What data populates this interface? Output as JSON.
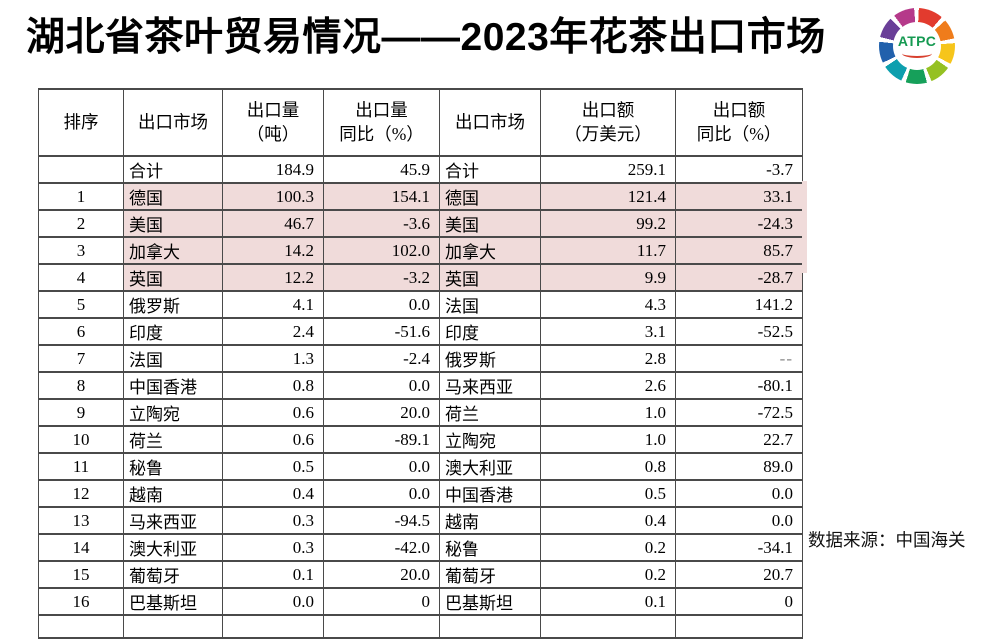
{
  "title": "湖北省茶叶贸易情况——2023年花茶出口市场",
  "logo": {
    "text": "ATPC"
  },
  "source_note": "数据来源：中国海关",
  "colors": {
    "highlight_pink": "#f0dbda",
    "table_border": "#4a4a4a",
    "logo_green": "#169a52"
  },
  "table": {
    "headers": [
      {
        "l1": "排序",
        "l2": ""
      },
      {
        "l1": "出口市场",
        "l2": ""
      },
      {
        "l1": "出口量",
        "l2": "（吨）"
      },
      {
        "l1": "出口量",
        "l2": "同比（%）"
      },
      {
        "l1": "出口市场",
        "l2": ""
      },
      {
        "l1": "出口额",
        "l2": "（万美元）"
      },
      {
        "l1": "出口额",
        "l2": "同比（%）"
      }
    ],
    "rows": [
      {
        "rank": "",
        "m1": "合计",
        "v1": "184.9",
        "y1": "45.9",
        "m2": "合计",
        "v2": "259.1",
        "y2": "-3.7",
        "hl": false
      },
      {
        "rank": "1",
        "m1": "德国",
        "v1": "100.3",
        "y1": "154.1",
        "m2": "德国",
        "v2": "121.4",
        "y2": "33.1",
        "hl": true
      },
      {
        "rank": "2",
        "m1": "美国",
        "v1": "46.7",
        "y1": "-3.6",
        "m2": "美国",
        "v2": "99.2",
        "y2": "-24.3",
        "hl": true
      },
      {
        "rank": "3",
        "m1": "加拿大",
        "v1": "14.2",
        "y1": "102.0",
        "m2": "加拿大",
        "v2": "11.7",
        "y2": "85.7",
        "hl": true
      },
      {
        "rank": "4",
        "m1": "英国",
        "v1": "12.2",
        "y1": "-3.2",
        "m2": "英国",
        "v2": "9.9",
        "y2": "-28.7",
        "hl": true
      },
      {
        "rank": "5",
        "m1": "俄罗斯",
        "v1": "4.1",
        "y1": "0.0",
        "m2": "法国",
        "v2": "4.3",
        "y2": "141.2",
        "hl": false
      },
      {
        "rank": "6",
        "m1": "印度",
        "v1": "2.4",
        "y1": "-51.6",
        "m2": "印度",
        "v2": "3.1",
        "y2": "-52.5",
        "hl": false
      },
      {
        "rank": "7",
        "m1": "法国",
        "v1": "1.3",
        "y1": "-2.4",
        "m2": "俄罗斯",
        "v2": "2.8",
        "y2": "--",
        "hl": false
      },
      {
        "rank": "8",
        "m1": "中国香港",
        "v1": "0.8",
        "y1": "0.0",
        "m2": "马来西亚",
        "v2": "2.6",
        "y2": "-80.1",
        "hl": false
      },
      {
        "rank": "9",
        "m1": "立陶宛",
        "v1": "0.6",
        "y1": "20.0",
        "m2": "荷兰",
        "v2": "1.0",
        "y2": "-72.5",
        "hl": false
      },
      {
        "rank": "10",
        "m1": "荷兰",
        "v1": "0.6",
        "y1": "-89.1",
        "m2": "立陶宛",
        "v2": "1.0",
        "y2": "22.7",
        "hl": false
      },
      {
        "rank": "11",
        "m1": "秘鲁",
        "v1": "0.5",
        "y1": "0.0",
        "m2": "澳大利亚",
        "v2": "0.8",
        "y2": "89.0",
        "hl": false
      },
      {
        "rank": "12",
        "m1": "越南",
        "v1": "0.4",
        "y1": "0.0",
        "m2": "中国香港",
        "v2": "0.5",
        "y2": "0.0",
        "hl": false
      },
      {
        "rank": "13",
        "m1": "马来西亚",
        "v1": "0.3",
        "y1": "-94.5",
        "m2": "越南",
        "v2": "0.4",
        "y2": "0.0",
        "hl": false
      },
      {
        "rank": "14",
        "m1": "澳大利亚",
        "v1": "0.3",
        "y1": "-42.0",
        "m2": "秘鲁",
        "v2": "0.2",
        "y2": "-34.1",
        "hl": false
      },
      {
        "rank": "15",
        "m1": "葡萄牙",
        "v1": "0.1",
        "y1": "20.0",
        "m2": "葡萄牙",
        "v2": "0.2",
        "y2": "20.7",
        "hl": false
      },
      {
        "rank": "16",
        "m1": "巴基斯坦",
        "v1": "0.0",
        "y1": "0",
        "m2": "巴基斯坦",
        "v2": "0.1",
        "y2": "0",
        "hl": false
      }
    ]
  }
}
